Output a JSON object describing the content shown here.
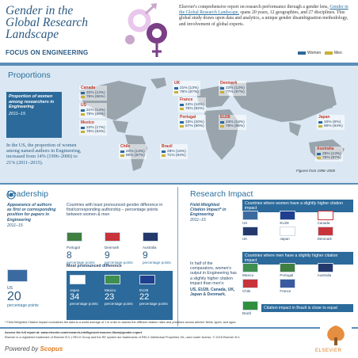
{
  "header": {
    "title_lines": [
      "Gender in the",
      "Global Research",
      "Landscape"
    ],
    "intro_a": "Elsevier's comprehensive report on research performance through a gender lens, ",
    "intro_link": "Gender in the Global Research Landscape,",
    "intro_b": " spans 20 years, 12 geographies, and 27 disciplines. This global study draws upon data and analytics, a unique gender disambiguation methodology, and involvement of global experts.",
    "focus": "FOCUS ON ENGINEERING",
    "legend_women": "Women",
    "legend_men": "Men",
    "colors": {
      "women": "#2b6a9b",
      "men": "#c9b034",
      "accent": "#7a3f86"
    }
  },
  "proportions": {
    "title": "Proportions",
    "box_title": "Proportion of women among researchers in Engineering",
    "box_years": "2011–15",
    "note": "In the US, the proportion of women among named authors in Engineering, increased from 14% (1996–2000) to 21% (2011–2015).",
    "figures_note": "Figures from 1996–2000",
    "countries": [
      {
        "name": "Canada",
        "w": "22% (13%)",
        "m": "78% (86%)"
      },
      {
        "name": "US",
        "w": "21% (14%)",
        "m": "79% (86%)"
      },
      {
        "name": "Mexico",
        "w": "24% (17%)",
        "m": "76% (83%)"
      },
      {
        "name": "Chile",
        "w": "20% (13%)",
        "m": "80% (87%)"
      },
      {
        "name": "Brazil",
        "w": "29% (16%)",
        "m": "71% (84%)"
      },
      {
        "name": "UK",
        "w": "21% (13%)",
        "m": "79% (87%)"
      },
      {
        "name": "France",
        "w": "24% (18%)",
        "m": "76% (82%)"
      },
      {
        "name": "Portugal",
        "w": "33% (20%)",
        "m": "67% (80%)"
      },
      {
        "name": "Denmark",
        "w": "23% (13%)",
        "m": "77% (87%)"
      },
      {
        "name": "EU28",
        "w": "24% (14%)",
        "m": "76% (86%)"
      },
      {
        "name": "Japan",
        "w": "10% (6%)",
        "m": "90% (94%)"
      },
      {
        "name": "Australia",
        "w": "25% (13%)",
        "m": "75% (87%)"
      }
    ]
  },
  "leadership": {
    "title": "Leadership",
    "intro": "Appearance of authors as first or corresponding position for papers in Engineering",
    "years": "2011–15",
    "least_title": "Countries with least pronounced gender difference in first/corresponding authorship – percentage points between women & men",
    "least": [
      {
        "name": "Portugal",
        "v": "8",
        "u": "percentage points"
      },
      {
        "name": "Denmark",
        "v": "9",
        "u": "percentage points"
      },
      {
        "name": "Australia",
        "v": "9",
        "u": "percentage points"
      }
    ],
    "most_title": "Most pronounced difference",
    "most": [
      {
        "name": "Japan",
        "v": "34",
        "u": "percentage points"
      },
      {
        "name": "Mexico",
        "v": "23",
        "u": "percentage points"
      },
      {
        "name": "EU28",
        "v": "22",
        "u": "percentage points"
      }
    ],
    "us_label": "US",
    "us_value": "20",
    "us_unit": "percentage points"
  },
  "impact": {
    "title": "Research Impact",
    "box_title": "Field-Weighted Citation Impact* in Engineering",
    "years": "2011–15",
    "women_title": "Countries where women have a slightly higher citation impact",
    "women_countries": [
      "US",
      "EU28",
      "Canada",
      "UK",
      "Japan",
      "Denmark"
    ],
    "men_title": "Countries where men have a slightly higher citation impact",
    "men_countries": [
      "Mexico",
      "Portugal",
      "Australia",
      "Chile",
      "France"
    ],
    "half_text": "In half of the comparators, women's output in Engineering has a slightly higher citation impact than men's:",
    "half_list": "US, EU28, Canada, UK, Japan & Denmark.",
    "brazil_text": "Citation impact in Brazil is close to equal",
    "brazil_label": "Brazil"
  },
  "footer": {
    "fwci_note": "* Field-Weighted Citation Impact normalizes the data to a world average of 1 in order to assess the different citation rates and practices across articles' fields, types, and ages.",
    "access": "Access the full report at: www.elsevier.com/research-intelligence/resource-library/gender-report",
    "trademark": "Elsevier is a registered trademark of Elsevier B.V. | RELX Group and the RE symbol are trademarks of RELX Intellectual Properties SA, used under license. © 2018 Elsevier B.V.",
    "powered": "Powered by ",
    "scopus": "Scopus",
    "logo_text": "ELSEVIER"
  }
}
